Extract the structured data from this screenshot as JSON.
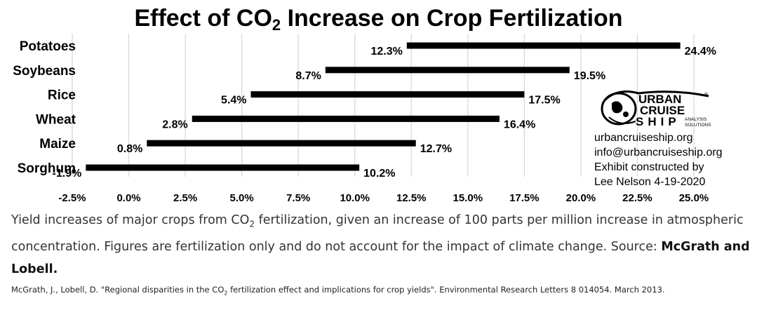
{
  "title": {
    "prefix": "Effect of CO",
    "subscript": "2",
    "suffix": " Increase on Crop Fertilization"
  },
  "chart_data": {
    "type": "range-bar",
    "title": "Effect of CO2 Increase on Crop Fertilization",
    "categories": [
      "Potatoes",
      "Soybeans",
      "Rice",
      "Wheat",
      "Maize",
      "Sorghum"
    ],
    "low": [
      12.3,
      8.7,
      5.4,
      2.8,
      0.8,
      -1.9
    ],
    "high": [
      24.4,
      19.5,
      17.5,
      16.4,
      12.7,
      10.2
    ],
    "low_labels": [
      "12.3%",
      "8.7%",
      "5.4%",
      "2.8%",
      "0.8%",
      "-1.9%"
    ],
    "high_labels": [
      "24.4%",
      "19.5%",
      "17.5%",
      "16.4%",
      "12.7%",
      "10.2%"
    ],
    "xlim": [
      -2.5,
      25.0
    ],
    "xticks": [
      -2.5,
      0,
      2.5,
      5,
      7.5,
      10,
      12.5,
      15,
      17.5,
      20,
      22.5,
      25
    ],
    "xtick_labels": [
      "-2.5%",
      "0.0%",
      "2.5%",
      "5.0%",
      "7.5%",
      "10.0%",
      "12.5%",
      "15.0%",
      "17.5%",
      "20.0%",
      "22.5%",
      "25.0%"
    ],
    "grid": true,
    "bar_color": "#000000",
    "grid_color": "#d9d9d9"
  },
  "logo": {
    "line1": "URBAN",
    "line2": "CRUISE",
    "line3": "SHIP",
    "tagline1": "ANALYSIS",
    "tagline2": "SOLUTIONS",
    "registered": "®"
  },
  "credit": {
    "website": "urbancruiseship.org",
    "email": "info@urbancruiseship.org",
    "line3": "Exhibit constructed by",
    "line4": "Lee Nelson 4-19-2020"
  },
  "caption": {
    "part1": "Yield increases of major crops from CO",
    "sub": "2",
    "part2": " fertilization, given an increase of 100 parts per million increase in atmospheric concentration. Figures are fertilization only and do not account for the impact of climate change. Source: ",
    "source": "McGrath and Lobell."
  },
  "reference": {
    "part1": "McGrath, J., Lobell, D. \"Regional disparities in the CO",
    "sub": "2",
    "part2": " fertilization effect and implications for crop yields\". Environmental Research Letters 8 014054. March 2013."
  }
}
